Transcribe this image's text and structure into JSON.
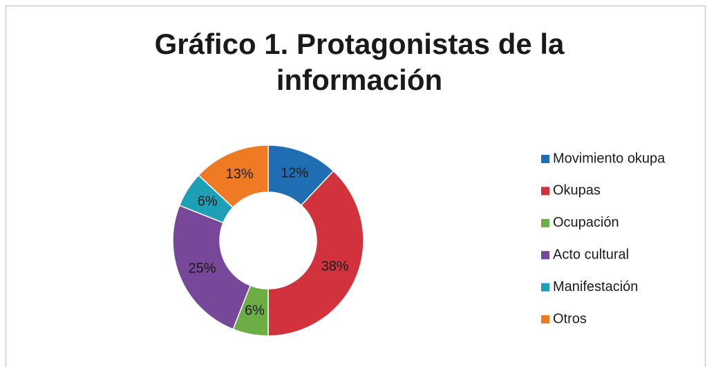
{
  "chart_data": {
    "type": "donut",
    "title": "Gráfico 1. Protagonistas de la información",
    "categories": [
      "Movimiento okupa",
      "Okupas",
      "Ocupación",
      "Acto cultural",
      "Manifestación",
      "Otros"
    ],
    "values": [
      12,
      38,
      6,
      25,
      6,
      13
    ],
    "value_labels": [
      "12%",
      "38%",
      "6%",
      "25%",
      "6%",
      "13%"
    ],
    "colors": [
      "#1f6db3",
      "#d2323c",
      "#6cae45",
      "#774799",
      "#1d9fb5",
      "#ef7a24"
    ],
    "legend": "right"
  }
}
